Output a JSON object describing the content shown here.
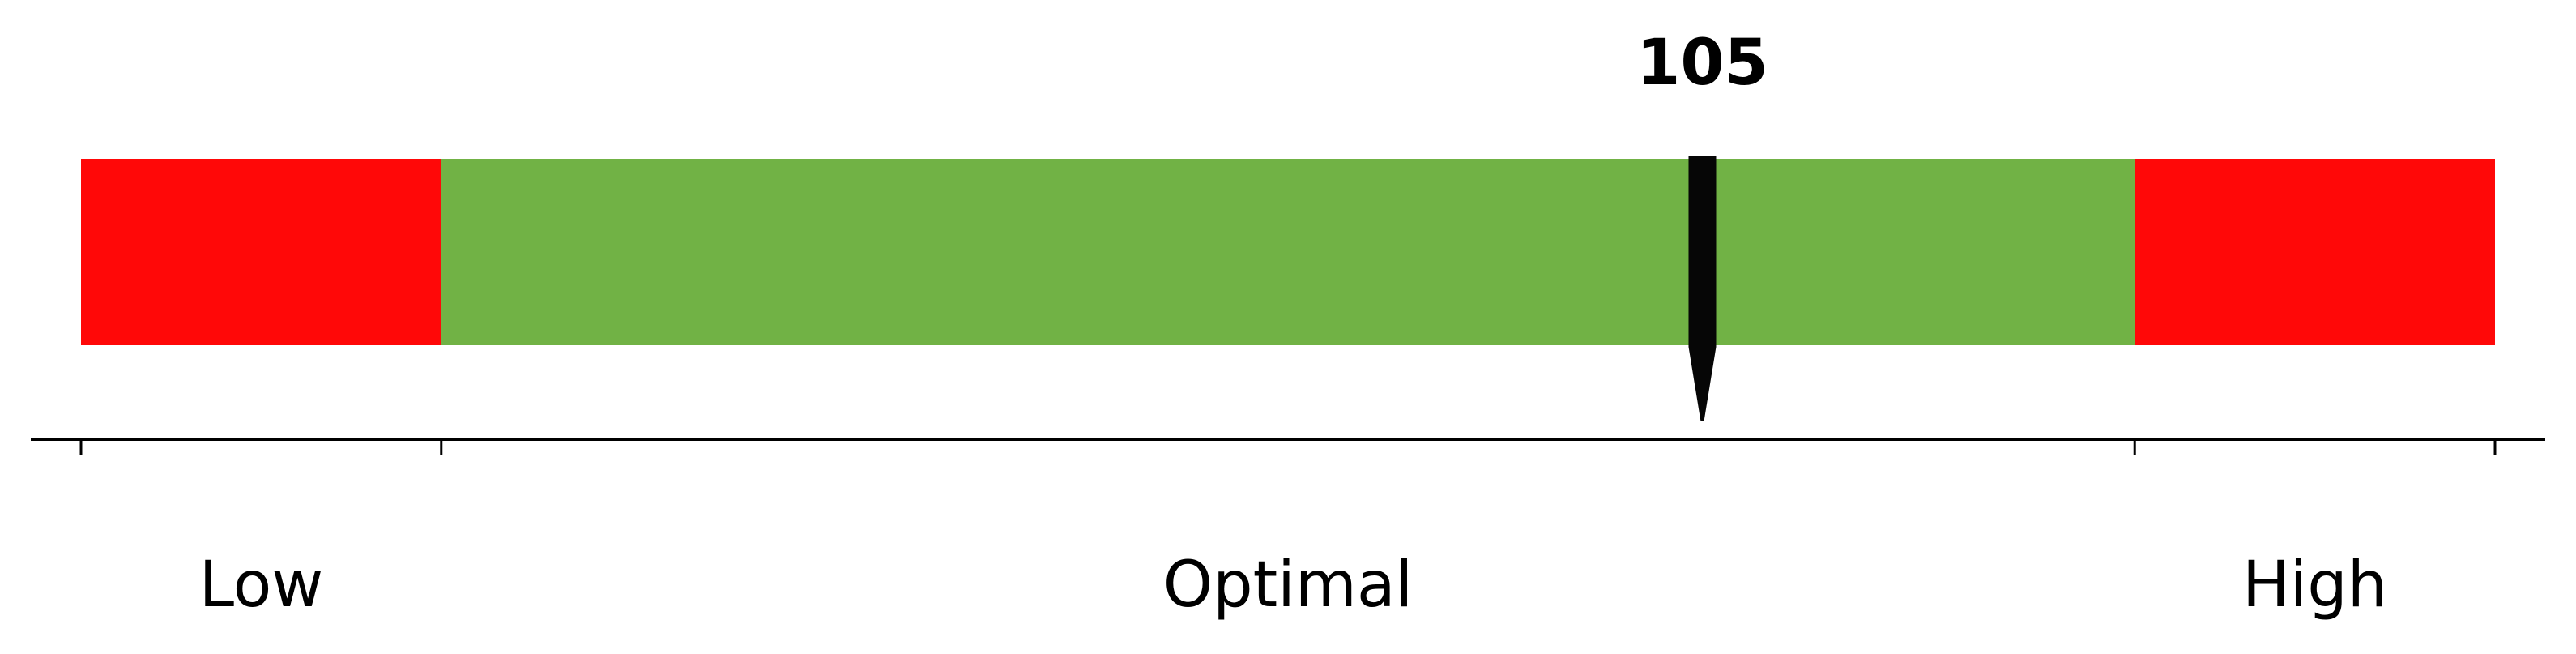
{
  "chart_data": {
    "type": "bullet-gauge",
    "value": 105,
    "value_label": "105",
    "range": [
      60,
      127
    ],
    "segments": [
      {
        "label": "Low",
        "from": 60,
        "to": 70,
        "color": "#ff0808"
      },
      {
        "label": "Optimal",
        "from": 70,
        "to": 117,
        "color": "#71b245"
      },
      {
        "label": "High",
        "from": 117,
        "to": 127,
        "color": "#ff0808"
      }
    ],
    "ticks": [
      60,
      70,
      117,
      127
    ],
    "tick_labels": [],
    "pointer_color": "#060606",
    "axis_color": "#000000"
  }
}
